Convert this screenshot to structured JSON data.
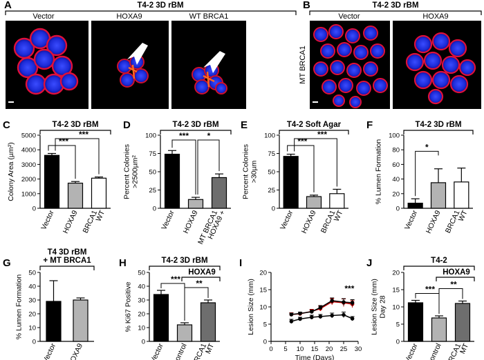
{
  "microscopy": {
    "A": {
      "label": "A",
      "header": "T4-2 3D rBM",
      "captions": [
        "Vector",
        "HOXA9",
        "WT BRCA1"
      ]
    },
    "B": {
      "label": "B",
      "header": "T4-2 3D rBM",
      "captions": [
        "Vector",
        "HOXA9"
      ],
      "side_label": "MT BRCA1"
    }
  },
  "chart_data": [
    {
      "id": "C",
      "label": "C",
      "type": "bar",
      "title": "T4-2 3D rBM",
      "ylabel": "Colony Area (µm²)",
      "ylim": [
        0,
        5000
      ],
      "yticks": [
        0,
        1000,
        2000,
        3000,
        4000,
        5000
      ],
      "categories": [
        "Vector",
        "HOXA9",
        "WT BRCA1"
      ],
      "category_labels": [
        [
          "Vector"
        ],
        [
          "HOXA9"
        ],
        [
          "BRCA1",
          "WT"
        ]
      ],
      "values": [
        3620,
        1720,
        2060
      ],
      "errors": [
        130,
        110,
        80
      ],
      "colors": [
        "#000000",
        "#b3b3b3",
        "#ffffff"
      ],
      "significance": [
        "***",
        "***"
      ]
    },
    {
      "id": "D",
      "label": "D",
      "type": "bar",
      "title": "T4-2 3D rBM",
      "ylabel": [
        "Percent Colonies",
        ">2500µm²"
      ],
      "ylim": [
        0,
        100
      ],
      "yticks": [
        0,
        25,
        50,
        75,
        100
      ],
      "categories": [
        "Vector",
        "HOXA9",
        "HOXA9 + MT BRCA1"
      ],
      "category_labels": [
        [
          "Vector"
        ],
        [
          "HOXA9"
        ],
        [
          "MT BRCA1",
          "HOXA9 +"
        ]
      ],
      "values": [
        74,
        12,
        42
      ],
      "errors": [
        5,
        3,
        5
      ],
      "colors": [
        "#000000",
        "#b3b3b3",
        "#6e6e6e"
      ],
      "significance": [
        "***",
        "*"
      ]
    },
    {
      "id": "E",
      "label": "E",
      "type": "bar",
      "title": "T4-2 Soft Agar",
      "ylabel": [
        "Percent Colonies",
        ">30µm"
      ],
      "ylim": [
        0,
        100
      ],
      "yticks": [
        0,
        25,
        50,
        75,
        100
      ],
      "categories": [
        "Vector",
        "HOXA9",
        "WT BRCA1"
      ],
      "category_labels": [
        [
          "Vector"
        ],
        [
          "HOXA9"
        ],
        [
          "BRCA1",
          "WT"
        ]
      ],
      "values": [
        71,
        16,
        20
      ],
      "errors": [
        3,
        2,
        6
      ],
      "colors": [
        "#000000",
        "#b3b3b3",
        "#ffffff"
      ],
      "significance": [
        "***",
        "***"
      ]
    },
    {
      "id": "F",
      "label": "F",
      "type": "bar",
      "title": "T4-2 3D rBM",
      "ylabel": "% Lumen Formation",
      "ylim": [
        0,
        100
      ],
      "yticks": [
        0,
        20,
        40,
        60,
        80,
        100
      ],
      "categories": [
        "Vector",
        "HOXA9",
        "WT BRCA1"
      ],
      "category_labels": [
        [
          "Vector"
        ],
        [
          "HOXA9"
        ],
        [
          "BRCA1",
          "WT"
        ]
      ],
      "values": [
        7,
        35,
        36
      ],
      "errors": [
        6,
        19,
        19
      ],
      "colors": [
        "#000000",
        "#b3b3b3",
        "#ffffff"
      ],
      "significance": [
        "*"
      ]
    },
    {
      "id": "G",
      "label": "G",
      "type": "bar",
      "title": [
        "T4 3D rBM",
        "+ MT BRCA1"
      ],
      "ylabel": "% Lumen Formation",
      "ylim": [
        0,
        50
      ],
      "yticks": [
        0,
        10,
        20,
        30,
        40,
        50
      ],
      "categories": [
        "Vector",
        "HOXA9"
      ],
      "category_labels": [
        [
          "Vector"
        ],
        [
          "HOXA9"
        ]
      ],
      "values": [
        29,
        30
      ],
      "errors": [
        15,
        1.5
      ],
      "colors": [
        "#000000",
        "#b3b3b3"
      ],
      "significance": []
    },
    {
      "id": "H",
      "label": "H",
      "type": "bar",
      "title": "T4-2 3D rBM",
      "group_label": "HOXA9",
      "ylabel": "% Ki67 Positive",
      "ylim": [
        0,
        50
      ],
      "yticks": [
        0,
        10,
        20,
        30,
        40,
        50
      ],
      "categories": [
        "Vector",
        "Control",
        "MT BRCA1"
      ],
      "category_labels": [
        [
          "Vector"
        ],
        [
          "Control"
        ],
        [
          "BRCA1",
          "MT"
        ]
      ],
      "values": [
        34,
        12,
        28
      ],
      "errors": [
        3,
        1.5,
        2
      ],
      "colors": [
        "#000000",
        "#b3b3b3",
        "#6e6e6e"
      ],
      "significance": [
        "***",
        "**"
      ]
    },
    {
      "id": "I",
      "label": "I",
      "type": "line",
      "xlabel": "Time (Days)",
      "ylabel": "Lesion Size (mm)",
      "xlim": [
        0,
        30
      ],
      "xticks": [
        0,
        5,
        10,
        15,
        20,
        25,
        30
      ],
      "ylim": [
        0,
        20
      ],
      "yticks": [
        0,
        5,
        10,
        15,
        20
      ],
      "series": [
        {
          "x": [
            7,
            10,
            14,
            17,
            21,
            25,
            28
          ],
          "values": [
            7.8,
            8.0,
            8.7,
            9.5,
            11.5,
            11.2,
            10.8
          ],
          "errors": [
            0.5,
            0.5,
            0.6,
            0.7,
            0.9,
            1.1,
            1.0
          ],
          "color": "#c00000"
        },
        {
          "x": [
            7,
            10,
            14,
            17,
            21,
            25,
            28
          ],
          "values": [
            7.8,
            8.1,
            8.6,
            9.8,
            11.8,
            11.4,
            11.2
          ],
          "errors": [
            0.4,
            0.4,
            0.5,
            0.6,
            0.8,
            1.0,
            0.9
          ],
          "color": "#000000"
        },
        {
          "x": [
            7,
            10,
            14,
            17,
            21,
            25,
            28
          ],
          "values": [
            5.8,
            6.5,
            7.0,
            7.2,
            7.5,
            7.7,
            6.6
          ],
          "errors": [
            0.6,
            0.5,
            0.6,
            0.6,
            0.7,
            0.8,
            0.6
          ],
          "color": "#000000"
        }
      ],
      "annotation": "***"
    },
    {
      "id": "J",
      "label": "J",
      "type": "bar",
      "title": "T4-2",
      "group_label": "HOXA9",
      "ylabel": [
        "Lesion Size (mm)",
        "Day 28"
      ],
      "ylim": [
        0,
        20
      ],
      "yticks": [
        0,
        5,
        10,
        15,
        20
      ],
      "categories": [
        "Vector",
        "Control",
        "MT BRCA1"
      ],
      "category_labels": [
        [
          "Vector"
        ],
        [
          "Control"
        ],
        [
          "BRCA1",
          "MT"
        ]
      ],
      "values": [
        11.2,
        6.8,
        11.0
      ],
      "errors": [
        0.7,
        0.6,
        0.7
      ],
      "colors": [
        "#000000",
        "#b3b3b3",
        "#6e6e6e"
      ],
      "significance": [
        "***",
        "**"
      ]
    }
  ]
}
